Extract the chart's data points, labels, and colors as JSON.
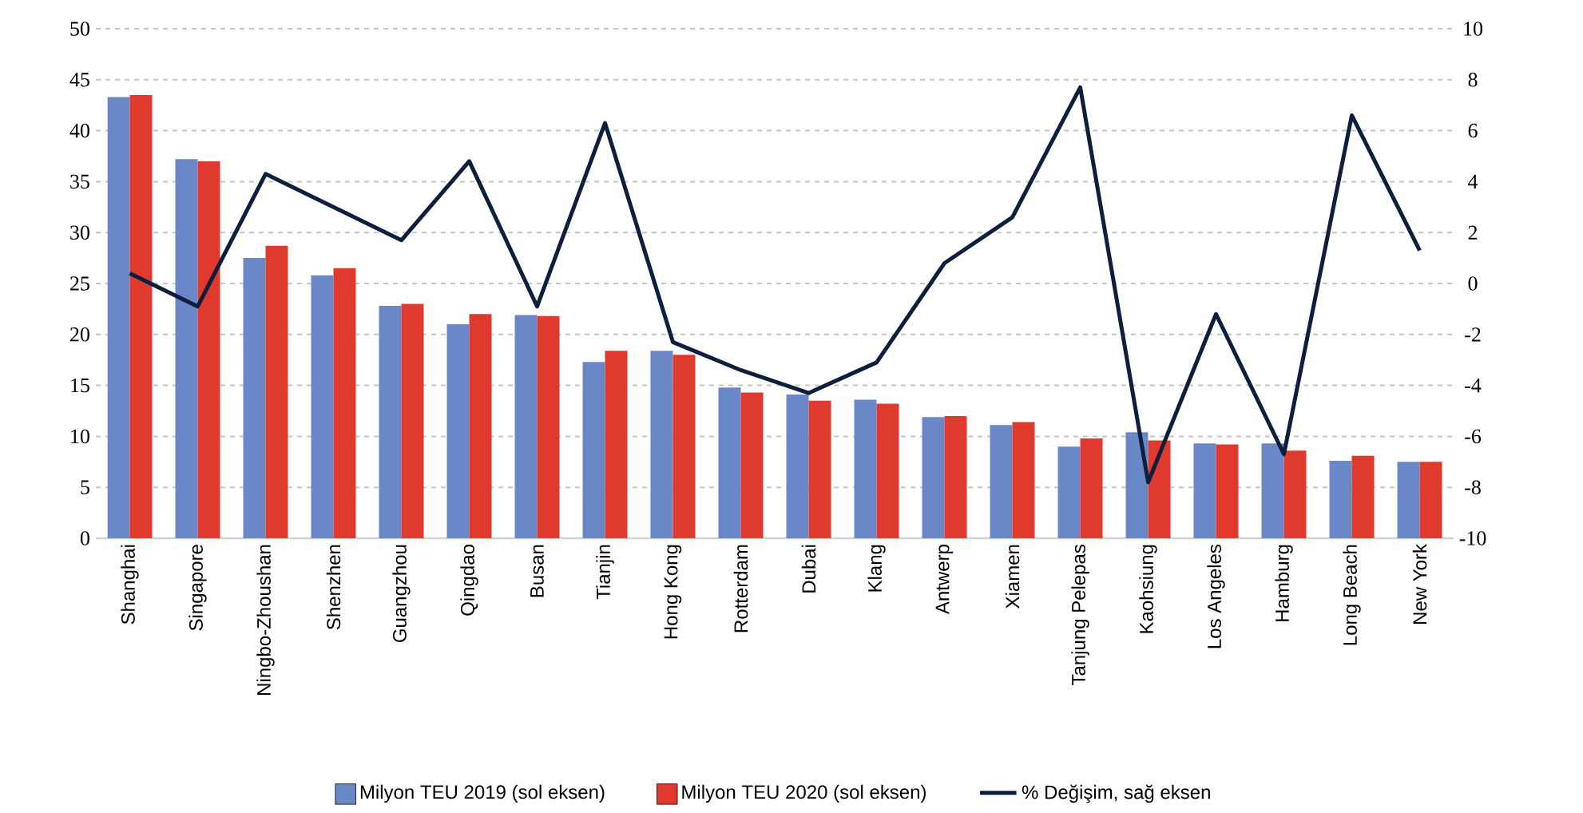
{
  "chart_data": {
    "type": "bar",
    "categories": [
      "Shanghai",
      "Singapore",
      "Ningbo-Zhoushan",
      "Shenzhen",
      "Guangzhou",
      "Qingdao",
      "Busan",
      "Tianjin",
      "Hong Kong",
      "Rotterdam",
      "Dubai",
      "Klang",
      "Antwerp",
      "Xiamen",
      "Tanjung Pelepas",
      "Kaohsiung",
      "Los Angeles",
      "Hamburg",
      "Long Beach",
      "New York"
    ],
    "series": [
      {
        "name": "Milyon TEU 2019 (sol eksen)",
        "color": "#6a87c8",
        "values": [
          43.3,
          37.2,
          27.5,
          25.8,
          22.8,
          21.0,
          21.9,
          17.3,
          18.4,
          14.8,
          14.1,
          13.6,
          11.9,
          11.1,
          9.0,
          10.4,
          9.3,
          9.3,
          7.6,
          7.5
        ]
      },
      {
        "name": "Milyon TEU 2020 (sol eksen)",
        "color": "#e03a2e",
        "values": [
          43.5,
          37.0,
          28.7,
          26.5,
          23.0,
          22.0,
          21.8,
          18.4,
          18.0,
          14.3,
          13.5,
          13.2,
          12.0,
          11.4,
          9.8,
          9.6,
          9.2,
          8.6,
          8.1,
          7.5
        ]
      },
      {
        "name": "% Değişim, sağ eksen",
        "color": "#0d1f3c",
        "type": "line",
        "axis": "y2",
        "values": [
          0.4,
          -0.9,
          4.3,
          3.0,
          1.7,
          4.8,
          -0.9,
          6.3,
          -2.3,
          -3.4,
          -4.3,
          -3.1,
          0.8,
          2.6,
          7.7,
          -7.8,
          -1.2,
          -6.7,
          6.6,
          1.3
        ]
      }
    ],
    "ylim": [
      0,
      50
    ],
    "yticks": [
      0,
      5,
      10,
      15,
      20,
      25,
      30,
      35,
      40,
      45,
      50
    ],
    "y2lim": [
      -10,
      10
    ],
    "y2ticks": [
      -10,
      -8,
      -6,
      -4,
      -2,
      0,
      2,
      4,
      6,
      8,
      10
    ],
    "grid": "y",
    "legend": "bottom"
  }
}
